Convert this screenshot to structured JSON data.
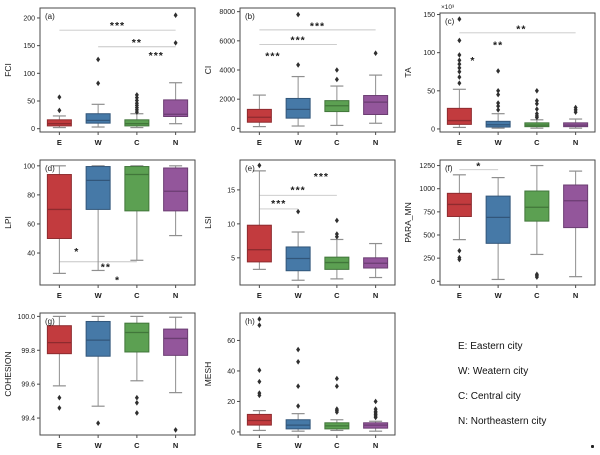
{
  "figure": {
    "legend": {
      "items": [
        "E: Eastern city",
        "W: Weatern city",
        "C: Central city",
        "N: Northeastern city"
      ]
    },
    "palette": {
      "box_fills": [
        "#c23b3e",
        "#4679a7",
        "#5ca052",
        "#93569b"
      ],
      "box_strokes": [
        "#8e2b2e",
        "#32567a",
        "#41763a",
        "#6b3d72"
      ],
      "whisker": "#8f8f8f",
      "outlier": "#2f2f2f",
      "sig_line": "#c6c6c6",
      "frame": "#4a4a4a",
      "text": "#1a1a1a"
    }
  },
  "chart_data": [
    {
      "type": "box",
      "panel": "(a)",
      "ylabel": "FCI",
      "y_top_label": null,
      "categories": [
        "E",
        "W",
        "C",
        "N"
      ],
      "ylim": [
        -6,
        218
      ],
      "yticks": [
        0,
        50,
        100,
        150,
        200
      ],
      "ytick_labels": [
        "0",
        "50",
        "100",
        "150",
        "200"
      ],
      "boxes": [
        {
          "low": 2,
          "q1": 5,
          "median": 9,
          "q3": 16,
          "high": 23,
          "outliers": [
            33,
            57
          ]
        },
        {
          "low": 3,
          "q1": 10,
          "median": 15,
          "q3": 27,
          "high": 44,
          "outliers": [
            82,
            125
          ]
        },
        {
          "low": 2,
          "q1": 5,
          "median": 9,
          "q3": 16,
          "high": 27,
          "outliers": [
            30,
            34,
            38,
            42,
            46,
            51,
            56,
            61
          ]
        },
        {
          "low": 9,
          "q1": 22,
          "median": 26,
          "q3": 52,
          "high": 83,
          "outliers": [
            155,
            205
          ]
        }
      ],
      "significance": [
        {
          "label": "***",
          "lx": 1.5,
          "ly": 186,
          "line": {
            "x1": 0,
            "x2": 3,
            "y": 178
          }
        },
        {
          "label": "**",
          "lx": 2.0,
          "ly": 156,
          "line": {
            "x1": 1,
            "x2": 3,
            "y": 148
          }
        },
        {
          "label": "***",
          "lx": 2.5,
          "ly": 132,
          "line": null
        }
      ]
    },
    {
      "type": "box",
      "panel": "(b)",
      "ylabel": "CI",
      "y_top_label": null,
      "categories": [
        "E",
        "W",
        "C",
        "N"
      ],
      "ylim": [
        -250,
        8250
      ],
      "yticks": [
        0,
        2000,
        4000,
        6000,
        8000
      ],
      "ytick_labels": [
        "0",
        "2000",
        "4000",
        "6000",
        "8000"
      ],
      "boxes": [
        {
          "low": 120,
          "q1": 420,
          "median": 760,
          "q3": 1300,
          "high": 2280,
          "outliers": []
        },
        {
          "low": 160,
          "q1": 700,
          "median": 1300,
          "q3": 2050,
          "high": 3550,
          "outliers": [
            4350,
            7800
          ]
        },
        {
          "low": 200,
          "q1": 1150,
          "median": 1550,
          "q3": 1900,
          "high": 2900,
          "outliers": [
            3350,
            4000
          ]
        },
        {
          "low": 350,
          "q1": 950,
          "median": 1800,
          "q3": 2250,
          "high": 3650,
          "outliers": [
            5150
          ]
        }
      ],
      "significance": [
        {
          "label": "***",
          "lx": 0.35,
          "ly": 4950,
          "line": null
        },
        {
          "label": "***",
          "lx": 1.0,
          "ly": 6050,
          "line": {
            "x1": 0,
            "x2": 2,
            "y": 5750
          }
        },
        {
          "label": "***",
          "lx": 1.5,
          "ly": 7000,
          "line": {
            "x1": 0,
            "x2": 3,
            "y": 6750
          }
        }
      ]
    },
    {
      "type": "box",
      "panel": "(c)",
      "ylabel": "TA",
      "y_top_label": "×10³",
      "categories": [
        "E",
        "W",
        "C",
        "N"
      ],
      "ylim": [
        -4,
        152
      ],
      "yticks": [
        0,
        50,
        100,
        150
      ],
      "ytick_labels": [
        "0",
        "50",
        "100",
        "150"
      ],
      "boxes": [
        {
          "low": 2,
          "q1": 6,
          "median": 11,
          "q3": 27,
          "high": 52,
          "outliers": [
            60,
            68,
            75,
            80,
            85,
            90,
            97,
            116,
            144
          ]
        },
        {
          "low": 1,
          "q1": 2.5,
          "median": 5.5,
          "q3": 10,
          "high": 20,
          "outliers": [
            25,
            30,
            34,
            45,
            50,
            76
          ]
        },
        {
          "low": 1,
          "q1": 3,
          "median": 5,
          "q3": 8,
          "high": 12,
          "outliers": [
            15,
            17,
            20,
            26,
            33,
            37,
            50
          ]
        },
        {
          "low": 1,
          "q1": 3,
          "median": 5,
          "q3": 8,
          "high": 13,
          "outliers": [
            22,
            25,
            28
          ]
        }
      ],
      "significance": [
        {
          "label": "*",
          "lx": 0.35,
          "ly": 90,
          "line": null
        },
        {
          "label": "**",
          "lx": 1.0,
          "ly": 110,
          "line": null
        },
        {
          "label": "**",
          "lx": 1.6,
          "ly": 131,
          "line": {
            "x1": 0,
            "x2": 3,
            "y": 126
          }
        }
      ]
    },
    {
      "type": "box",
      "panel": "(d)",
      "ylabel": "LPI",
      "y_top_label": null,
      "categories": [
        "E",
        "W",
        "C",
        "N"
      ],
      "ylim": [
        18,
        104
      ],
      "yticks": [
        40,
        60,
        80,
        100
      ],
      "ytick_labels": [
        "40",
        "60",
        "80",
        "100"
      ],
      "boxes": [
        {
          "low": 26,
          "q1": 50,
          "median": 70,
          "q3": 94,
          "high": 100,
          "outliers": []
        },
        {
          "low": 28,
          "q1": 70,
          "median": 90,
          "q3": 99.5,
          "high": 100,
          "outliers": []
        },
        {
          "low": 35,
          "q1": 69,
          "median": 94,
          "q3": 99.5,
          "high": 100,
          "outliers": []
        },
        {
          "low": 52,
          "q1": 69,
          "median": 82.5,
          "q3": 98.5,
          "high": 100,
          "outliers": []
        }
      ],
      "significance": [
        {
          "label": "*",
          "lx": 0.45,
          "ly": 41,
          "line": null
        },
        {
          "label": "**",
          "lx": 1.2,
          "ly": 30.5,
          "line": {
            "x1": 0,
            "x2": 2,
            "y": 34
          }
        },
        {
          "label": "*",
          "lx": 1.5,
          "ly": 21.5,
          "line": null
        }
      ]
    },
    {
      "type": "box",
      "panel": "(e)",
      "ylabel": "LSI",
      "y_top_label": null,
      "categories": [
        "E",
        "W",
        "C",
        "N"
      ],
      "ylim": [
        1,
        19.4
      ],
      "yticks": [
        5,
        10,
        15
      ],
      "ytick_labels": [
        "5",
        "10",
        "15"
      ],
      "boxes": [
        {
          "low": 3.3,
          "q1": 4.4,
          "median": 6.2,
          "q3": 9.8,
          "high": 17.8,
          "outliers": [
            18.6
          ]
        },
        {
          "low": 1.7,
          "q1": 3.1,
          "median": 4.9,
          "q3": 6.6,
          "high": 8.8,
          "outliers": [
            11.8
          ]
        },
        {
          "low": 1.9,
          "q1": 3.3,
          "median": 4.3,
          "q3": 5.1,
          "high": 7.7,
          "outliers": [
            8.1,
            8.5,
            10.5
          ]
        },
        {
          "low": 2.1,
          "q1": 3.5,
          "median": 4.2,
          "q3": 5.0,
          "high": 7.1,
          "outliers": []
        }
      ],
      "significance": [
        {
          "label": "***",
          "lx": 0.5,
          "ly": 13.0,
          "line": {
            "x1": 0,
            "x2": 1,
            "y": 12.2
          }
        },
        {
          "label": "***",
          "lx": 1.0,
          "ly": 15.0,
          "line": {
            "x1": 0,
            "x2": 2,
            "y": 14.2
          }
        },
        {
          "label": "***",
          "lx": 1.6,
          "ly": 17.0,
          "line": null
        }
      ]
    },
    {
      "type": "box",
      "panel": "(f)",
      "ylabel": "PARA_MN",
      "y_top_label": null,
      "categories": [
        "E",
        "W",
        "C",
        "N"
      ],
      "ylim": [
        -40,
        1310
      ],
      "yticks": [
        0,
        250,
        500,
        750,
        1000,
        1250
      ],
      "ytick_labels": [
        "0",
        "250",
        "500",
        "750",
        "1000",
        "1250"
      ],
      "boxes": [
        {
          "low": 450,
          "q1": 700,
          "median": 830,
          "q3": 950,
          "high": 1150,
          "outliers": [
            330,
            255,
            235
          ]
        },
        {
          "low": 20,
          "q1": 410,
          "median": 690,
          "q3": 920,
          "high": 1120,
          "outliers": []
        },
        {
          "low": 290,
          "q1": 650,
          "median": 800,
          "q3": 975,
          "high": 1250,
          "outliers": [
            45,
            60,
            75
          ]
        },
        {
          "low": 50,
          "q1": 580,
          "median": 870,
          "q3": 1040,
          "high": 1190,
          "outliers": []
        }
      ],
      "significance": [
        {
          "label": "*",
          "lx": 0.5,
          "ly": 1245,
          "line": {
            "x1": 0,
            "x2": 1,
            "y": 1205
          }
        }
      ]
    },
    {
      "type": "box",
      "panel": "(g)",
      "ylabel": "COHESION",
      "y_top_label": null,
      "categories": [
        "E",
        "W",
        "C",
        "N"
      ],
      "ylim": [
        99.3,
        100.02
      ],
      "yticks": [
        99.4,
        99.6,
        99.8,
        100.0
      ],
      "ytick_labels": [
        "99.4",
        "99.6",
        "99.8",
        "100.0"
      ],
      "boxes": [
        {
          "low": 99.59,
          "q1": 99.78,
          "median": 99.845,
          "q3": 99.945,
          "high": 100.0,
          "outliers": [
            99.52,
            99.46
          ]
        },
        {
          "low": 99.47,
          "q1": 99.765,
          "median": 99.86,
          "q3": 99.97,
          "high": 100.0,
          "outliers": [
            99.37
          ]
        },
        {
          "low": 99.62,
          "q1": 99.79,
          "median": 99.905,
          "q3": 99.96,
          "high": 100.0,
          "outliers": [
            99.52,
            99.49,
            99.43
          ]
        },
        {
          "low": 99.55,
          "q1": 99.77,
          "median": 99.87,
          "q3": 99.925,
          "high": 99.995,
          "outliers": [
            99.33
          ]
        }
      ],
      "significance": []
    },
    {
      "type": "box",
      "panel": "(h)",
      "ylabel": "MESH",
      "y_top_label": null,
      "categories": [
        "E",
        "W",
        "C",
        "N"
      ],
      "ylim": [
        -2,
        78
      ],
      "yticks": [
        0,
        20,
        40,
        60
      ],
      "ytick_labels": [
        "0",
        "20",
        "40",
        "60"
      ],
      "boxes": [
        {
          "low": 1,
          "q1": 4.5,
          "median": 7.5,
          "q3": 11.5,
          "high": 14,
          "outliers": [
            24,
            25.5,
            33,
            40.5,
            70,
            74
          ]
        },
        {
          "low": 0.5,
          "q1": 2,
          "median": 4.5,
          "q3": 8,
          "high": 12,
          "outliers": [
            17,
            30,
            46,
            54
          ]
        },
        {
          "low": 1,
          "q1": 2,
          "median": 4,
          "q3": 6,
          "high": 8,
          "outliers": [
            13,
            14,
            15,
            30,
            35
          ]
        },
        {
          "low": 0.5,
          "q1": 2.5,
          "median": 4.5,
          "q3": 6,
          "high": 7,
          "outliers": [
            9.5,
            10.5,
            11.5,
            12.5,
            13.5,
            15,
            20
          ]
        }
      ],
      "significance": []
    }
  ]
}
